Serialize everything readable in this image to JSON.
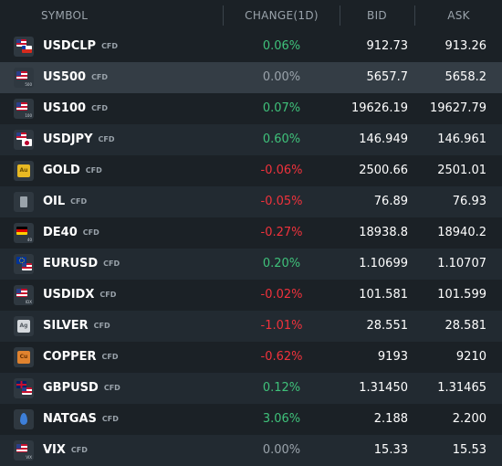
{
  "header": {
    "symbol": "SYMBOL",
    "change": "CHANGE(1D)",
    "bid": "BID",
    "ask": "ASK"
  },
  "colors": {
    "positive": "#3fc17a",
    "negative": "#f0323c",
    "neutral": "#9aa3ab",
    "background": "#1b2126",
    "selected_row": "#343d45"
  },
  "rows": [
    {
      "symbol": "USDCLP",
      "type": "CFD",
      "change": "0.06%",
      "bid": "912.73",
      "ask": "913.26",
      "icon": "usd-clp-flags-icon"
    },
    {
      "symbol": "US500",
      "type": "CFD",
      "change": "0.00%",
      "bid": "5657.7",
      "ask": "5658.2",
      "icon": "us-flag-icon",
      "icon_sub": "500"
    },
    {
      "symbol": "US100",
      "type": "CFD",
      "change": "0.07%",
      "bid": "19626.19",
      "ask": "19627.79",
      "icon": "us-flag-icon",
      "icon_sub": "100"
    },
    {
      "symbol": "USDJPY",
      "type": "CFD",
      "change": "0.60%",
      "bid": "146.949",
      "ask": "146.961",
      "icon": "usd-jpy-flags-icon"
    },
    {
      "symbol": "GOLD",
      "type": "CFD",
      "change": "-0.06%",
      "bid": "2500.66",
      "ask": "2501.01",
      "icon": "gold-icon",
      "icon_text": "Au"
    },
    {
      "symbol": "OIL",
      "type": "CFD",
      "change": "-0.05%",
      "bid": "76.89",
      "ask": "76.93",
      "icon": "oil-barrel-icon"
    },
    {
      "symbol": "DE40",
      "type": "CFD",
      "change": "-0.27%",
      "bid": "18938.8",
      "ask": "18940.2",
      "icon": "germany-flag-icon",
      "icon_sub": "40"
    },
    {
      "symbol": "EURUSD",
      "type": "CFD",
      "change": "0.20%",
      "bid": "1.10699",
      "ask": "1.10707",
      "icon": "eur-usd-flags-icon"
    },
    {
      "symbol": "USDIDX",
      "type": "CFD",
      "change": "-0.02%",
      "bid": "101.581",
      "ask": "101.599",
      "icon": "us-flag-icon",
      "icon_sub": "IDX"
    },
    {
      "symbol": "SILVER",
      "type": "CFD",
      "change": "-1.01%",
      "bid": "28.551",
      "ask": "28.581",
      "icon": "silver-icon",
      "icon_text": "Ag"
    },
    {
      "symbol": "COPPER",
      "type": "CFD",
      "change": "-0.62%",
      "bid": "9193",
      "ask": "9210",
      "icon": "copper-icon",
      "icon_text": "Cu"
    },
    {
      "symbol": "GBPUSD",
      "type": "CFD",
      "change": "0.12%",
      "bid": "1.31450",
      "ask": "1.31465",
      "icon": "gbp-usd-flags-icon"
    },
    {
      "symbol": "NATGAS",
      "type": "CFD",
      "change": "3.06%",
      "bid": "2.188",
      "ask": "2.200",
      "icon": "gas-flame-icon"
    },
    {
      "symbol": "VIX",
      "type": "CFD",
      "change": "0.00%",
      "bid": "15.33",
      "ask": "15.53",
      "icon": "us-flag-icon",
      "icon_sub": "VIX"
    }
  ]
}
